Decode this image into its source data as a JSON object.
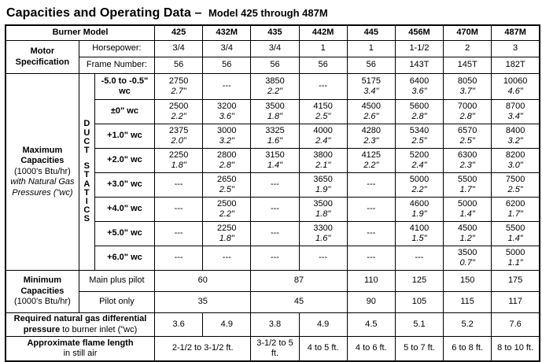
{
  "title": {
    "main": "Capacities and Operating Data –",
    "model_range": "Model 425 through 487M"
  },
  "header": {
    "burner_model": "Burner Model",
    "models": [
      "425",
      "432M",
      "435",
      "442M",
      "445",
      "456M",
      "470M",
      "487M"
    ]
  },
  "motor": {
    "label": "Motor Specification",
    "horsepower_label": "Horsepower:",
    "horsepower": [
      "3/4",
      "3/4",
      "3/4",
      "1",
      "1",
      "1-1/2",
      "2",
      "3"
    ],
    "frame_label": "Frame Number:",
    "frame": [
      "56",
      "56",
      "56",
      "56",
      "56",
      "143T",
      "145T",
      "182T"
    ]
  },
  "max": {
    "label_bold": "Maximum Capacities",
    "label_unit": "(1000's Btu/hr)",
    "label_note": "with Natural Gas Pressures (\"wc)",
    "duct_label": "DUCT STATICS",
    "rows": [
      {
        "static": "-5.0 to -0.5\" wc",
        "cells": [
          [
            "2750",
            "2.7\""
          ],
          [
            "---"
          ],
          [
            "3850",
            "2.2\""
          ],
          [
            "---"
          ],
          [
            "5175",
            "3.4\""
          ],
          [
            "6400",
            "3.6\""
          ],
          [
            "8050",
            "3.7\""
          ],
          [
            "10060",
            "4.6\""
          ]
        ]
      },
      {
        "static": "±0\" wc",
        "cells": [
          [
            "2500",
            "2.2\""
          ],
          [
            "3200",
            "3.6\""
          ],
          [
            "3500",
            "1.8\""
          ],
          [
            "4150",
            "2.5\""
          ],
          [
            "4500",
            "2.6\""
          ],
          [
            "5600",
            "2.8\""
          ],
          [
            "7000",
            "2.8\""
          ],
          [
            "8700",
            "3.4\""
          ]
        ]
      },
      {
        "static": "+1.0\" wc",
        "cells": [
          [
            "2375",
            "2.0\""
          ],
          [
            "3000",
            "3.2\""
          ],
          [
            "3325",
            "1.6\""
          ],
          [
            "4000",
            "2.4\""
          ],
          [
            "4280",
            "2.3\""
          ],
          [
            "5340",
            "2.5\""
          ],
          [
            "6570",
            "2.5\""
          ],
          [
            "8400",
            "3.2\""
          ]
        ]
      },
      {
        "static": "+2.0\" wc",
        "cells": [
          [
            "2250",
            "1.8\""
          ],
          [
            "2800",
            "2.8\""
          ],
          [
            "3150",
            "1.4\""
          ],
          [
            "3800",
            "2.1\""
          ],
          [
            "4125",
            "2.2\""
          ],
          [
            "5200",
            "2.4\""
          ],
          [
            "6300",
            "2.3\""
          ],
          [
            "8200",
            "3.0\""
          ]
        ]
      },
      {
        "static": "+3.0\" wc",
        "cells": [
          [
            "---"
          ],
          [
            "2650",
            "2.5\""
          ],
          [
            "---"
          ],
          [
            "3650",
            "1.9\""
          ],
          [
            "---"
          ],
          [
            "5000",
            "2.2\""
          ],
          [
            "5500",
            "1.7\""
          ],
          [
            "7500",
            "2.5\""
          ]
        ]
      },
      {
        "static": "+4.0\" wc",
        "cells": [
          [
            "---"
          ],
          [
            "2500",
            "2.2\""
          ],
          [
            "---"
          ],
          [
            "3500",
            "1.8\""
          ],
          [
            "---"
          ],
          [
            "4600",
            "1.9\""
          ],
          [
            "5000",
            "1.4\""
          ],
          [
            "6200",
            "1.7\""
          ]
        ]
      },
      {
        "static": "+5.0\" wc",
        "cells": [
          [
            "---"
          ],
          [
            "2250",
            "1.8\""
          ],
          [
            "---"
          ],
          [
            "3300",
            "1.6\""
          ],
          [
            "---"
          ],
          [
            "4100",
            "1.5\""
          ],
          [
            "4500",
            "1.2\""
          ],
          [
            "5500",
            "1.4\""
          ]
        ]
      },
      {
        "static": "+6.0\" wc",
        "cells": [
          [
            "---"
          ],
          [
            "---"
          ],
          [
            "---"
          ],
          [
            "---"
          ],
          [
            "---"
          ],
          [
            "---"
          ],
          [
            "3500",
            "0.7\""
          ],
          [
            "5000",
            "1.1\""
          ]
        ]
      }
    ]
  },
  "min": {
    "label_bold": "Minimum Capacities",
    "label_unit": "(1000's Btu/hr)",
    "main_plus_pilot_label": "Main plus pilot",
    "main_plus_pilot": [
      "60",
      "87",
      "110",
      "125",
      "150",
      "175"
    ],
    "pilot_only_label": "Pilot only",
    "pilot_only": [
      "35",
      "45",
      "90",
      "105",
      "115",
      "117"
    ]
  },
  "gas_pressure": {
    "label_bold": "Required natural gas differential pressure",
    "label_reg": "to burner inlet (\"wc)",
    "values": [
      "3.6",
      "4.9",
      "3.8",
      "4.9",
      "4.5",
      "5.1",
      "5.2",
      "7.6"
    ]
  },
  "flame": {
    "label_bold": "Approximate flame length",
    "label_reg": "in still air",
    "values": [
      "2-1/2 to 3-1/2 ft.",
      "3-1/2 to 5 ft.",
      "4 to 5 ft.",
      "4 to 6 ft.",
      "5 to 7 ft.",
      "6 to 8 ft.",
      "8 to 10 ft."
    ]
  }
}
